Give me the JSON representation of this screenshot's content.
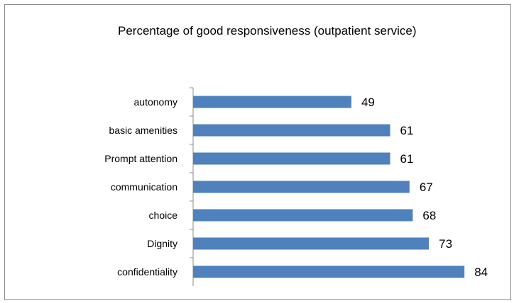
{
  "chart_data": {
    "type": "bar",
    "orientation": "horizontal",
    "title": "Percentage of good responsiveness (outpatient service)",
    "categories": [
      "autonomy",
      "basic amenities",
      "Prompt attention",
      "communication",
      "choice",
      "Dignity",
      "confidentiality"
    ],
    "values": [
      49,
      61,
      61,
      67,
      68,
      73,
      84
    ],
    "data_labels": true,
    "xlim": [
      0,
      100
    ],
    "grid": false,
    "bar_color": "#4f81bd"
  }
}
